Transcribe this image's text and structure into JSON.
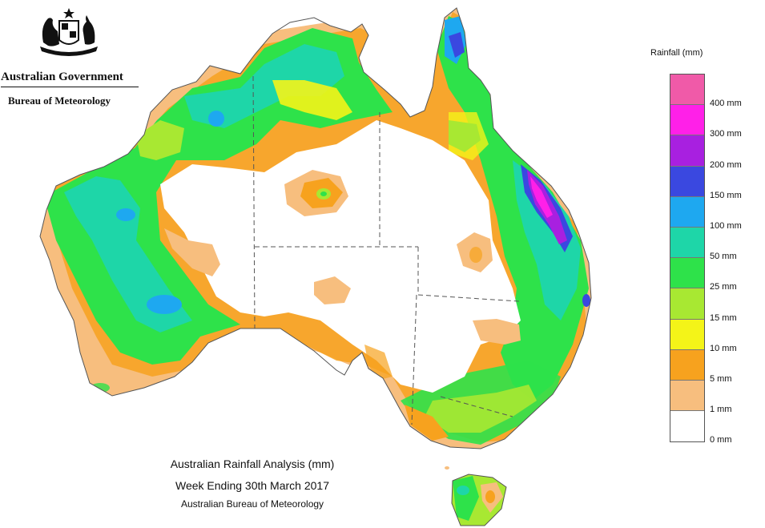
{
  "header": {
    "government": "Australian Government",
    "agency": "Bureau of Meteorology",
    "crest_icon": "coat-of-arms-icon"
  },
  "map_title": {
    "line1": "Australian Rainfall Analysis (mm)",
    "line2": "Week Ending 30th March 2017",
    "line3": "Australian Bureau of Meteorology"
  },
  "legend": {
    "title": "Rainfall (mm)",
    "bands": [
      {
        "color": "#f05aa8"
      },
      {
        "color": "#ff20e8",
        "label": "400 mm"
      },
      {
        "color": "#a820e0",
        "label": "300 mm"
      },
      {
        "color": "#3a48e0",
        "label": "200 mm"
      },
      {
        "color": "#1ea8f0",
        "label": "150 mm"
      },
      {
        "color": "#1ed6a8",
        "label": "100 mm"
      },
      {
        "color": "#2ee24a",
        "label": "50 mm"
      },
      {
        "color": "#a8e832",
        "label": "25 mm"
      },
      {
        "color": "#f4f418",
        "label": "15 mm"
      },
      {
        "color": "#f7a21e",
        "label": "10 mm"
      },
      {
        "color": "#f7be7e",
        "label": "5 mm"
      },
      {
        "color": "#ffffff",
        "label": "1 mm"
      },
      {
        "label": "0 mm"
      }
    ]
  }
}
